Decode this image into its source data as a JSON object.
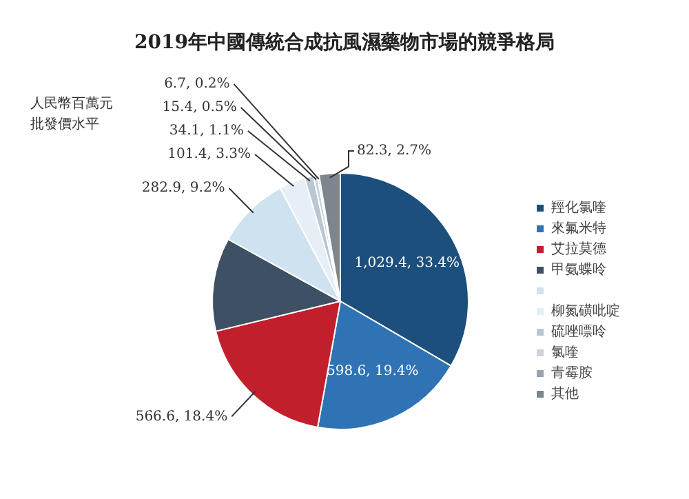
{
  "chart_data": {
    "type": "pie",
    "title": "2019年中國傳統合成抗風濕藥物市場的競爭格局",
    "annotations": [
      "人民幣百萬元",
      "批發價水平"
    ],
    "categories": [
      "羥化氯喹",
      "來氟米特",
      "艾拉莫德",
      "甲氨蝶呤",
      null,
      "柳氮磺吡啶",
      "硫唑嘌呤",
      "氯喹",
      "青霉胺",
      "其他"
    ],
    "values": [
      1029.4,
      598.6,
      566.6,
      363.6,
      282.9,
      101.4,
      34.1,
      15.4,
      6.7,
      82.3
    ],
    "value_labels": [
      "1,029.4, 33.4%",
      "598.6, 19.4%",
      "566.6, 18.4%",
      null,
      "282.9, 9.2%",
      "101.4, 3.3%",
      "34.1, 1.1%",
      "15.4, 0.5%",
      "6.7, 0.2%",
      "82.3, 2.7%"
    ],
    "colors": [
      "#1d4f7c",
      "#2f73b5",
      "#c21f2c",
      "#3e5063",
      "#cfe2f0",
      "#e6eef6",
      "#b9c6d3",
      "#cdd3db",
      "#9aa3ad",
      "#7d858e"
    ],
    "legend": "right"
  }
}
